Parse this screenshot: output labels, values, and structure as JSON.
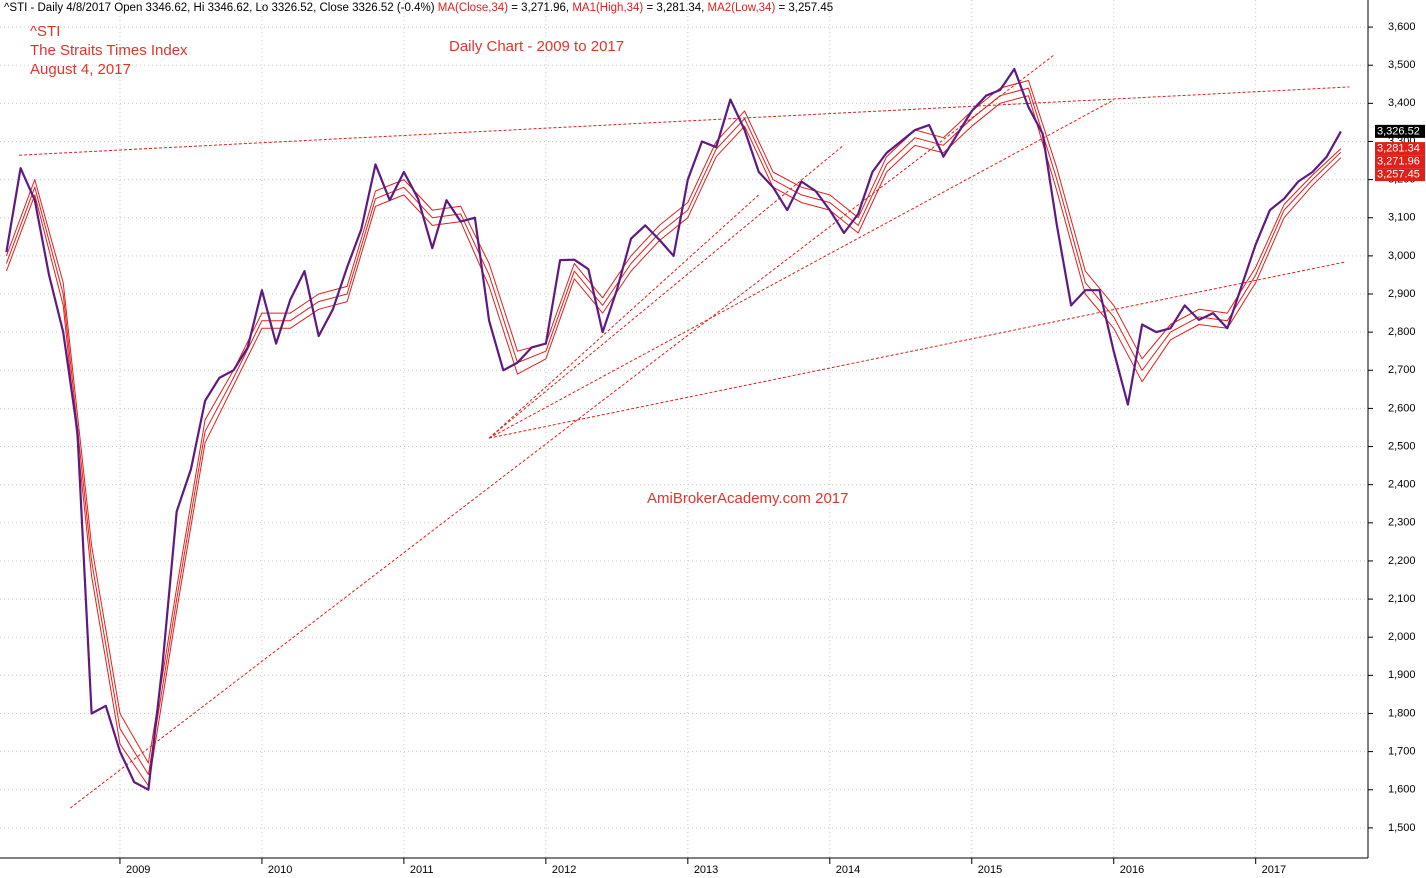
{
  "chart_data": {
    "type": "line",
    "header": [
      "^STI - Daily 4/8/2017 Open 3346.62, Hi 3346.62, Lo 3326.52, Close 3326.52 (-0.4%) ",
      " = 3,271.96, ",
      " = 3,281.34, ",
      " = 3,257.45"
    ],
    "annotations": [
      "The Straits Times Index",
      "August 4, 2017",
      "Daily Chart - 2009 to 2017",
      "AmiBrokerAcademy.com  2017"
    ],
    "x": [
      2008.2,
      2008.3,
      2008.4,
      2008.5,
      2008.6,
      2008.7,
      2008.8,
      2008.9,
      2009.0,
      2009.1,
      2009.2,
      2009.3,
      2009.4,
      2009.5,
      2009.6,
      2009.7,
      2009.8,
      2009.9,
      2010.0,
      2010.1,
      2010.2,
      2010.3,
      2010.4,
      2010.5,
      2010.6,
      2010.7,
      2010.8,
      2010.9,
      2011.0,
      2011.1,
      2011.2,
      2011.3,
      2011.4,
      2011.5,
      2011.6,
      2011.7,
      2011.8,
      2011.9,
      2012.0,
      2012.1,
      2012.2,
      2012.3,
      2012.4,
      2012.5,
      2012.6,
      2012.7,
      2012.8,
      2012.9,
      2013.0,
      2013.1,
      2013.2,
      2013.3,
      2013.4,
      2013.5,
      2013.6,
      2013.7,
      2013.8,
      2013.9,
      2014.0,
      2014.1,
      2014.2,
      2014.3,
      2014.4,
      2014.5,
      2014.6,
      2014.7,
      2014.8,
      2014.9,
      2015.0,
      2015.1,
      2015.2,
      2015.3,
      2015.4,
      2015.5,
      2015.6,
      2015.7,
      2015.8,
      2015.9,
      2016.0,
      2016.1,
      2016.2,
      2016.3,
      2016.4,
      2016.5,
      2016.6,
      2016.7,
      2016.8,
      2016.9,
      2017.0,
      2017.1,
      2017.2,
      2017.3,
      2017.4,
      2017.5,
      2017.6
    ],
    "series": [
      {
        "name": "^STI",
        "color": "#5e1a80",
        "end_label": {
          "value": 3326.52,
          "label": "3,326.52"
        },
        "end_color": "#000000",
        "values": [
          3010,
          3230,
          3146,
          2950,
          2800,
          2540,
          1800,
          1820,
          1700,
          1620,
          1600,
          1930,
          2330,
          2440,
          2620,
          2680,
          2700,
          2760,
          2910,
          2770,
          2885,
          2960,
          2790,
          2860,
          2970,
          3070,
          3240,
          3146,
          3220,
          3150,
          3020,
          3146,
          3090,
          3100,
          2830,
          2700,
          2720,
          2760,
          2770,
          2989,
          2990,
          2965,
          2800,
          2910,
          3045,
          3080,
          3042,
          3000,
          3200,
          3300,
          3285,
          3410,
          3330,
          3220,
          3180,
          3120,
          3195,
          3170,
          3120,
          3060,
          3110,
          3220,
          3270,
          3300,
          3330,
          3343,
          3260,
          3320,
          3380,
          3420,
          3435,
          3490,
          3390,
          3320,
          3080,
          2870,
          2910,
          2910,
          2750,
          2610,
          2820,
          2800,
          2810,
          2870,
          2832,
          2850,
          2810,
          2920,
          3030,
          3120,
          3150,
          3195,
          3220,
          3260,
          3326.52
        ]
      },
      {
        "name": "MA(Close,34)",
        "color": "#e0201b",
        "end_label": {
          "value": 3271.96,
          "label": "3,271.96"
        },
        "end_color": "#e0201b",
        "x": [
          2008.2,
          2008.4,
          2008.6,
          2008.8,
          2009.0,
          2009.2,
          2009.4,
          2009.6,
          2009.8,
          2010.0,
          2010.2,
          2010.4,
          2010.6,
          2010.8,
          2011.0,
          2011.2,
          2011.4,
          2011.6,
          2011.8,
          2012.0,
          2012.2,
          2012.4,
          2012.6,
          2012.8,
          2013.0,
          2013.2,
          2013.4,
          2013.6,
          2013.8,
          2014.0,
          2014.2,
          2014.4,
          2014.6,
          2014.8,
          2015.0,
          2015.2,
          2015.4,
          2015.6,
          2015.8,
          2016.0,
          2016.2,
          2016.4,
          2016.6,
          2016.8,
          2017.0,
          2017.2,
          2017.4,
          2017.6
        ],
        "values": [
          2980,
          3180,
          2900,
          2200,
          1760,
          1640,
          2100,
          2540,
          2680,
          2830,
          2830,
          2880,
          2900,
          3150,
          3180,
          3100,
          3110,
          2950,
          2720,
          2750,
          2960,
          2870,
          2980,
          3060,
          3120,
          3280,
          3360,
          3200,
          3160,
          3140,
          3080,
          3240,
          3310,
          3290,
          3360,
          3420,
          3440,
          3200,
          2930,
          2840,
          2700,
          2800,
          2840,
          2830,
          2950,
          3120,
          3200,
          3271.96
        ]
      },
      {
        "name": "MA1(High,34)",
        "color": "#e0201b",
        "end_label": {
          "value": 3281.34,
          "label": "3,281.34"
        },
        "end_color": "#e0201b",
        "x": [
          2008.2,
          2008.4,
          2008.6,
          2008.8,
          2009.0,
          2009.2,
          2009.4,
          2009.6,
          2009.8,
          2010.0,
          2010.2,
          2010.4,
          2010.6,
          2010.8,
          2011.0,
          2011.2,
          2011.4,
          2011.6,
          2011.8,
          2012.0,
          2012.2,
          2012.4,
          2012.6,
          2012.8,
          2013.0,
          2013.2,
          2013.4,
          2013.6,
          2013.8,
          2014.0,
          2014.2,
          2014.4,
          2014.6,
          2014.8,
          2015.0,
          2015.2,
          2015.4,
          2015.6,
          2015.8,
          2016.0,
          2016.2,
          2016.4,
          2016.6,
          2016.8,
          2017.0,
          2017.2,
          2017.4,
          2017.6
        ],
        "values": [
          3000,
          3200,
          2930,
          2240,
          1800,
          1670,
          2130,
          2570,
          2700,
          2850,
          2850,
          2900,
          2920,
          3170,
          3200,
          3120,
          3130,
          2980,
          2750,
          2770,
          2980,
          2890,
          3000,
          3080,
          3140,
          3300,
          3380,
          3220,
          3180,
          3160,
          3100,
          3260,
          3330,
          3310,
          3380,
          3440,
          3460,
          3230,
          2960,
          2870,
          2730,
          2820,
          2860,
          2850,
          2970,
          3135,
          3212,
          3281.34
        ]
      },
      {
        "name": "MA2(Low,34)",
        "color": "#e0201b",
        "end_label": {
          "value": 3257.45,
          "label": "3,257.45"
        },
        "end_color": "#e0201b",
        "x": [
          2008.2,
          2008.4,
          2008.6,
          2008.8,
          2009.0,
          2009.2,
          2009.4,
          2009.6,
          2009.8,
          2010.0,
          2010.2,
          2010.4,
          2010.6,
          2010.8,
          2011.0,
          2011.2,
          2011.4,
          2011.6,
          2011.8,
          2012.0,
          2012.2,
          2012.4,
          2012.6,
          2012.8,
          2013.0,
          2013.2,
          2013.4,
          2013.6,
          2013.8,
          2014.0,
          2014.2,
          2014.4,
          2014.6,
          2014.8,
          2015.0,
          2015.2,
          2015.4,
          2015.6,
          2015.8,
          2016.0,
          2016.2,
          2016.4,
          2016.6,
          2016.8,
          2017.0,
          2017.2,
          2017.4,
          2017.6
        ],
        "values": [
          2960,
          3160,
          2870,
          2160,
          1720,
          1610,
          2070,
          2510,
          2660,
          2810,
          2810,
          2860,
          2880,
          3130,
          3160,
          3080,
          3090,
          2920,
          2690,
          2730,
          2940,
          2850,
          2960,
          3040,
          3100,
          3260,
          3340,
          3180,
          3140,
          3120,
          3060,
          3220,
          3290,
          3270,
          3340,
          3400,
          3420,
          3170,
          2900,
          2810,
          2670,
          2780,
          2820,
          2810,
          2930,
          3100,
          3185,
          3257.45
        ]
      }
    ],
    "trendlines": [
      {
        "x": [
          2008.29,
          2017.66
        ],
        "y": [
          3264,
          3443
        ]
      },
      {
        "x": [
          2011.6,
          2017.63
        ],
        "y": [
          2522,
          2984
        ]
      },
      {
        "x": [
          2008.65,
          2015.58
        ],
        "y": [
          1552,
          3527
        ]
      },
      {
        "x": [
          2011.6,
          2016.0
        ],
        "y": [
          2522,
          3409
        ]
      },
      {
        "x": [
          2011.6,
          2014.1
        ],
        "y": [
          2522,
          3291
        ]
      },
      {
        "x": [
          2011.6,
          2013.5
        ],
        "y": [
          2522,
          3160
        ]
      }
    ],
    "trendline_color": "#e0201b",
    "xlim": [
      2008.155,
      2017.77
    ],
    "xticks": [
      2009,
      2010,
      2011,
      2012,
      2013,
      2014,
      2015,
      2016,
      2017
    ],
    "ylim": [
      1421,
      3671
    ],
    "yticks": [
      {
        "value": 1500,
        "label": "1,500"
      },
      {
        "value": 1600,
        "label": "1,600"
      },
      {
        "value": 1700,
        "label": "1,700"
      },
      {
        "value": 1800,
        "label": "1,800"
      },
      {
        "value": 1900,
        "label": "1,900"
      },
      {
        "value": 2000,
        "label": "2,000"
      },
      {
        "value": 2100,
        "label": "2,100"
      },
      {
        "value": 2200,
        "label": "2,200"
      },
      {
        "value": 2300,
        "label": "2,300"
      },
      {
        "value": 2400,
        "label": "2,400"
      },
      {
        "value": 2500,
        "label": "2,500"
      },
      {
        "value": 2600,
        "label": "2,600"
      },
      {
        "value": 2700,
        "label": "2,700"
      },
      {
        "value": 2800,
        "label": "2,800"
      },
      {
        "value": 2900,
        "label": "2,900"
      },
      {
        "value": 3000,
        "label": "3,000"
      },
      {
        "value": 3100,
        "label": "3,100"
      },
      {
        "value": 3200,
        "label": "3,200"
      },
      {
        "value": 3300,
        "label": "3,300"
      },
      {
        "value": 3400,
        "label": "3,400"
      },
      {
        "value": 3500,
        "label": "3,500"
      },
      {
        "value": 3600,
        "label": "3,600"
      }
    ],
    "grid": true
  }
}
